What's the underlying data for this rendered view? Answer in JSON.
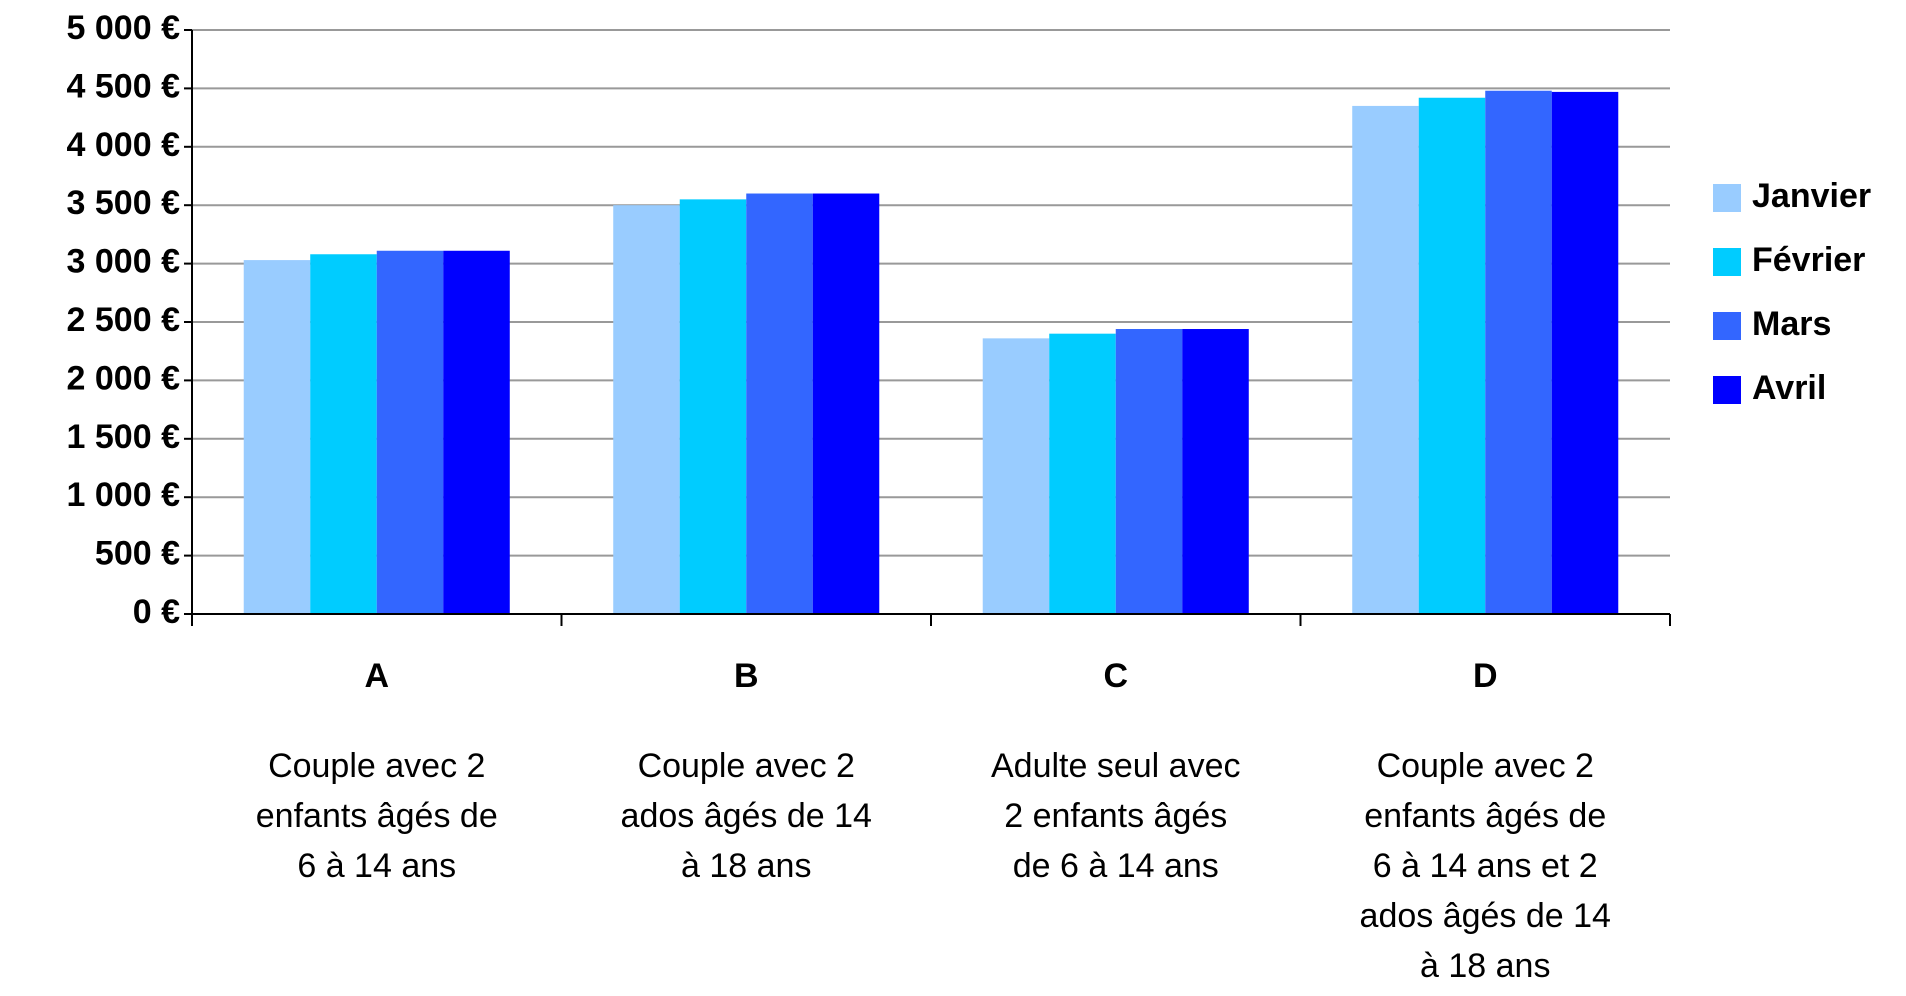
{
  "chart_data": {
    "type": "bar",
    "categories": [
      "A",
      "B",
      "C",
      "D"
    ],
    "descriptions": [
      [
        "Couple avec 2",
        "enfants âgés de",
        "6 à 14 ans"
      ],
      [
        "Couple avec 2",
        "ados âgés de 14",
        "à 18 ans"
      ],
      [
        "Adulte seul avec",
        "2 enfants âgés",
        "de 6 à 14 ans"
      ],
      [
        "Couple avec 2",
        "enfants âgés de",
        "6 à 14 ans et 2",
        "ados âgés de 14",
        "à 18 ans"
      ]
    ],
    "series": [
      {
        "name": "Janvier",
        "color": "#99ccff",
        "values": [
          3030,
          3500,
          2360,
          4350
        ]
      },
      {
        "name": "Février",
        "color": "#00ccff",
        "values": [
          3080,
          3550,
          2400,
          4420
        ]
      },
      {
        "name": "Mars",
        "color": "#3366ff",
        "values": [
          3110,
          3600,
          2440,
          4480
        ]
      },
      {
        "name": "Avril",
        "color": "#0000ff",
        "values": [
          3110,
          3600,
          2440,
          4470
        ]
      }
    ],
    "ylim": [
      0,
      5000
    ],
    "yticks": [
      {
        "value": 0,
        "label": "0 €"
      },
      {
        "value": 500,
        "label": "500 €"
      },
      {
        "value": 1000,
        "label": "1 000 €"
      },
      {
        "value": 1500,
        "label": "1 500 €"
      },
      {
        "value": 2000,
        "label": "2 000 €"
      },
      {
        "value": 2500,
        "label": "2 500 €"
      },
      {
        "value": 3000,
        "label": "3 000 €"
      },
      {
        "value": 3500,
        "label": "3 500 €"
      },
      {
        "value": 4000,
        "label": "4 000 €"
      },
      {
        "value": 4500,
        "label": "4 500 €"
      },
      {
        "value": 5000,
        "label": "5 000 €"
      }
    ],
    "grid": true,
    "legend": "right"
  }
}
